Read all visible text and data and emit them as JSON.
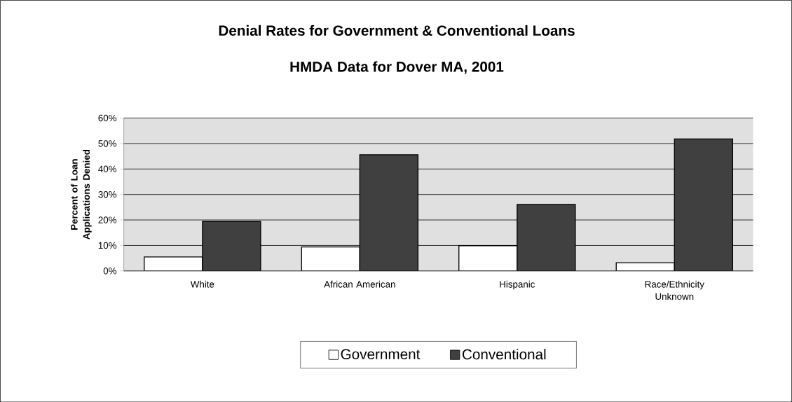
{
  "chart_data": {
    "type": "bar",
    "title": "Denial Rates for Government & Conventional Loans",
    "subtitle": "HMDA Data for Dover MA, 2001",
    "ylabel": "Percent of Loan Applications Denied",
    "categories": [
      "White",
      "African American",
      "Hispanic",
      "Race/Ethnicity Unknown"
    ],
    "series": [
      {
        "name": "Government",
        "color": "#ffffff",
        "values": [
          5.5,
          9.4,
          9.9,
          3.2
        ]
      },
      {
        "name": "Conventional",
        "color": "#404040",
        "values": [
          19.4,
          45.6,
          26.1,
          51.8
        ]
      }
    ],
    "ylim": [
      0,
      60
    ],
    "yticks": [
      {
        "value": 0,
        "label": "0%"
      },
      {
        "value": 10,
        "label": "10%"
      },
      {
        "value": 20,
        "label": "20%"
      },
      {
        "value": 30,
        "label": "30%"
      },
      {
        "value": 40,
        "label": "40%"
      },
      {
        "value": 50,
        "label": "50%"
      },
      {
        "value": 60,
        "label": "60%"
      }
    ],
    "grid": "y",
    "legend": "bottom"
  }
}
